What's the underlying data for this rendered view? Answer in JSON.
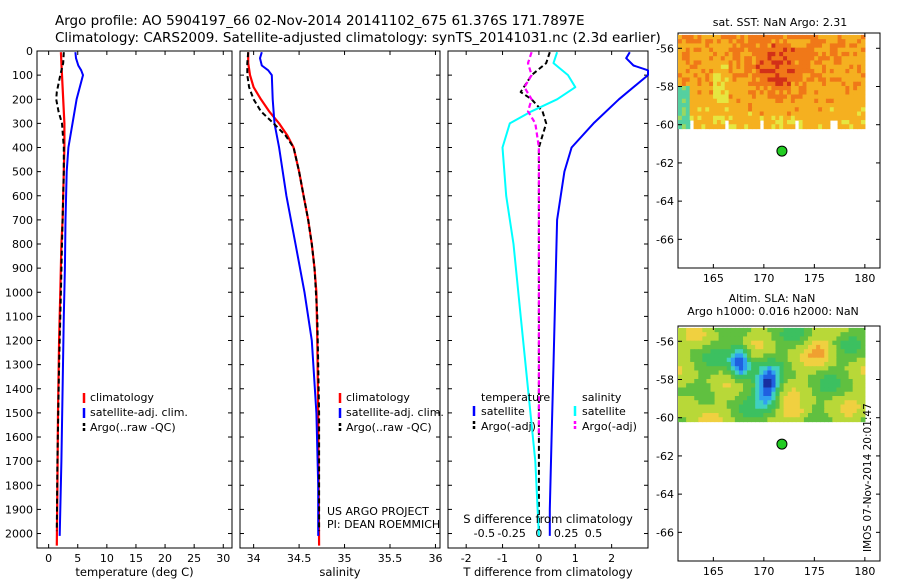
{
  "header": {
    "line1": "Argo profile: AO 5904197_66 02-Nov-2014 20141102_675 61.376S 171.7897E",
    "line2": "Climatology: CARS2009. Satellite-adjusted climatology: synTS_20141031.nc (2.3d earlier)"
  },
  "footer": "IMOS 07-Nov-2014 20:01:47",
  "colors": {
    "clim": "#ff0000",
    "sat": "#0000ff",
    "argo": "#000000",
    "sal_sat": "#00ffff",
    "sal_argo": "#ff00ff"
  },
  "chart_data": [
    {
      "id": "temperature",
      "type": "line",
      "xlabel": "temperature (deg C)",
      "xlim": [
        -2,
        31.5
      ],
      "ylim": [
        2060,
        0
      ],
      "xticks": [
        0,
        5,
        10,
        15,
        20,
        25,
        30
      ],
      "yticks": [
        0,
        100,
        200,
        300,
        400,
        500,
        600,
        700,
        800,
        900,
        1000,
        1100,
        1200,
        1300,
        1400,
        1500,
        1600,
        1700,
        1800,
        1900,
        2000
      ],
      "legend": [
        "climatology",
        "satellite-adj. clim.",
        "Argo(..raw -QC)"
      ],
      "series": [
        {
          "name": "climatology",
          "style": "clim",
          "x": [
            2.1,
            2.2,
            2.3,
            2.5,
            2.7,
            2.7,
            2.6,
            2.5,
            2.4,
            2.2,
            2.0,
            1.8,
            1.6,
            1.5,
            1.4
          ],
          "y": [
            5,
            50,
            100,
            200,
            300,
            400,
            500,
            600,
            700,
            800,
            1000,
            1200,
            1500,
            1800,
            2050
          ]
        },
        {
          "name": "satellite-adj. clim.",
          "style": "sat",
          "x": [
            4.6,
            4.7,
            5.1,
            5.6,
            5.9,
            4.8,
            4.1,
            3.4,
            3.1,
            2.9,
            2.8,
            2.6,
            2.4,
            2.2,
            2.0,
            1.9
          ],
          "y": [
            5,
            30,
            60,
            80,
            100,
            200,
            300,
            400,
            500,
            700,
            900,
            1100,
            1400,
            1700,
            1900,
            2010
          ]
        },
        {
          "name": "Argo(..raw -QC)",
          "style": "argo",
          "x": [
            2.6,
            2.5,
            2.0,
            1.4,
            1.3,
            1.7,
            2.3,
            2.6,
            2.6,
            2.5,
            2.3,
            2.1,
            1.8,
            1.5,
            1.4
          ],
          "y": [
            5,
            50,
            100,
            170,
            200,
            250,
            300,
            400,
            500,
            600,
            800,
            1000,
            1300,
            1700,
            1990
          ]
        }
      ]
    },
    {
      "id": "salinity",
      "type": "line",
      "xlabel": "salinity",
      "xlim": [
        33.85,
        36.05
      ],
      "ylim": [
        2060,
        0
      ],
      "xticks": [
        34,
        34.5,
        35,
        35.5,
        36
      ],
      "legend": [
        "climatology",
        "satellite-adj. clim.",
        "Argo(..raw -QC)"
      ],
      "annotations": [
        "US ARGO PROJECT",
        "PI: DEAN ROEMMICH"
      ],
      "series": [
        {
          "name": "climatology",
          "style": "clim",
          "x": [
            33.94,
            33.94,
            33.96,
            34.0,
            34.08,
            34.17,
            34.28,
            34.37,
            34.44,
            34.5,
            34.55,
            34.6,
            34.64,
            34.67,
            34.69,
            34.7,
            34.71,
            34.72
          ],
          "y": [
            5,
            50,
            100,
            150,
            200,
            250,
            300,
            350,
            400,
            500,
            600,
            700,
            800,
            900,
            1000,
            1200,
            1500,
            2050
          ]
        },
        {
          "name": "satellite-adj. clim.",
          "style": "sat",
          "x": [
            34.09,
            34.07,
            34.09,
            34.16,
            34.2,
            34.21,
            34.23,
            34.28,
            34.36,
            34.46,
            34.56,
            34.64,
            34.69,
            34.71,
            34.71
          ],
          "y": [
            5,
            30,
            60,
            80,
            100,
            200,
            300,
            400,
            600,
            800,
            1000,
            1200,
            1500,
            1800,
            2010
          ]
        },
        {
          "name": "Argo(..raw -QC)",
          "style": "argo",
          "x": [
            33.94,
            33.93,
            33.93,
            33.95,
            34.0,
            34.08,
            34.22,
            34.35,
            34.44,
            34.5,
            34.55,
            34.6,
            34.64,
            34.67,
            34.7,
            34.72,
            34.72
          ],
          "y": [
            5,
            50,
            100,
            150,
            200,
            250,
            300,
            350,
            400,
            500,
            600,
            700,
            800,
            900,
            1100,
            1500,
            1990
          ]
        }
      ]
    },
    {
      "id": "difference",
      "type": "line",
      "xlabel": "T difference from climatology",
      "xlabel2": "S difference from climatology",
      "xlim": [
        -2.5,
        3
      ],
      "ylim": [
        2060,
        0
      ],
      "xticks": [
        -2,
        -1,
        0,
        1,
        2
      ],
      "xticks2": [
        {
          "v": -1.5,
          "label": "-0.5"
        },
        {
          "v": -0.75,
          "label": "-0.25"
        },
        {
          "v": 0,
          "label": "0"
        },
        {
          "v": 0.75,
          "label": "0.25"
        },
        {
          "v": 1.5,
          "label": "0.5"
        }
      ],
      "legend_t": [
        "temperature",
        "satellite",
        "Argo(-adj)"
      ],
      "legend_s": [
        "salinity",
        "satellite",
        "Argo(-adj)"
      ],
      "series": [
        {
          "name": "T satellite",
          "style": "sat",
          "x": [
            2.5,
            2.4,
            2.6,
            3.0,
            3.0,
            2.2,
            1.5,
            0.9,
            0.7,
            0.5,
            0.45,
            0.4,
            0.35,
            0.3,
            0.3
          ],
          "y": [
            5,
            30,
            60,
            80,
            100,
            200,
            300,
            400,
            500,
            700,
            1000,
            1300,
            1600,
            1900,
            2010
          ]
        },
        {
          "name": "T Argo(-adj)",
          "style": "argo",
          "x": [
            0.3,
            0.2,
            -0.2,
            -0.5,
            -0.2,
            0.1,
            0.2,
            0.1,
            0.0,
            0.0,
            0.0,
            0.0,
            0.0
          ],
          "y": [
            5,
            50,
            100,
            170,
            200,
            250,
            300,
            350,
            400,
            600,
            1000,
            1500,
            1990
          ]
        },
        {
          "name": "S satellite",
          "style": "sal_sat",
          "x": [
            0.5,
            0.4,
            0.8,
            1.0,
            0.5,
            -0.2,
            -0.8,
            -1.0,
            -0.9,
            -0.7,
            -0.5,
            -0.3,
            -0.1,
            0.0
          ],
          "y": [
            5,
            50,
            100,
            150,
            200,
            250,
            300,
            400,
            600,
            800,
            1100,
            1400,
            1700,
            2010
          ]
        },
        {
          "name": "S Argo(-adj)",
          "style": "sal_argo",
          "x": [
            -0.2,
            -0.3,
            -0.2,
            -0.4,
            -0.2,
            -0.3,
            -0.1,
            -0.05,
            0.0,
            0.0,
            0.0,
            0.0
          ],
          "y": [
            5,
            50,
            100,
            150,
            200,
            250,
            300,
            350,
            400,
            600,
            1000,
            1600
          ]
        }
      ]
    },
    {
      "id": "sst_map",
      "type": "heatmap",
      "title": "sat. SST: NaN Argo: 2.31",
      "xticks": [
        165,
        170,
        175,
        180
      ],
      "yticks": [
        -56,
        -58,
        -60,
        -62,
        -64,
        -66
      ],
      "xlim": [
        161.5,
        181.5
      ],
      "ylim": [
        -67.5,
        -55.2
      ],
      "data_extent": {
        "lon": [
          161.5,
          180
        ],
        "lat": [
          -60.2,
          -55.3
        ]
      },
      "argo_position": {
        "lon": 171.79,
        "lat": -61.38
      }
    },
    {
      "id": "sla_map",
      "type": "heatmap",
      "title": "Altim. SLA: NaN",
      "subtitle": "Argo h1000: 0.016 h2000: NaN",
      "xticks": [
        165,
        170,
        175,
        180
      ],
      "yticks": [
        -56,
        -58,
        -60,
        -62,
        -64,
        -66
      ],
      "xlim": [
        161.5,
        181.5
      ],
      "ylim": [
        -67.5,
        -55.2
      ],
      "data_extent": {
        "lon": [
          161.5,
          180
        ],
        "lat": [
          -60.2,
          -55.3
        ]
      },
      "argo_position": {
        "lon": 171.79,
        "lat": -61.38
      }
    }
  ]
}
